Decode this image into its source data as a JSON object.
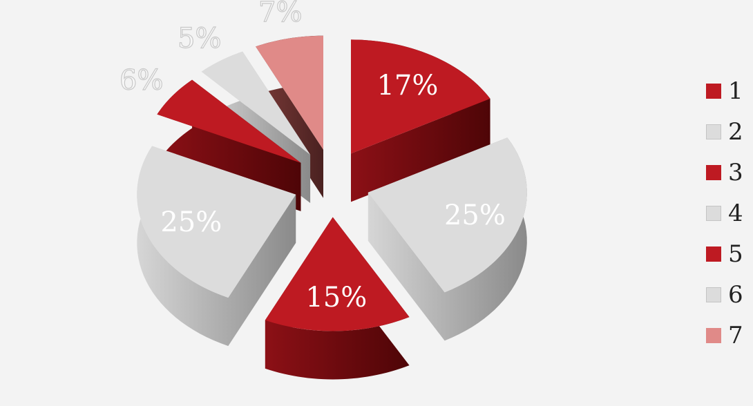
{
  "chart_data": {
    "type": "pie",
    "title": "",
    "legend_position": "right",
    "slices": [
      {
        "label": "1",
        "value": 17,
        "value_label": "17%",
        "color": "#be1a22"
      },
      {
        "label": "2",
        "value": 25,
        "value_label": "25%",
        "color": "#dcdcdc"
      },
      {
        "label": "3",
        "value": 15,
        "value_label": "15%",
        "color": "#be1a22"
      },
      {
        "label": "4",
        "value": 25,
        "value_label": "25%",
        "color": "#dcdcdc"
      },
      {
        "label": "5",
        "value": 6,
        "value_label": "6%",
        "color": "#be1a22"
      },
      {
        "label": "6",
        "value": 5,
        "value_label": "5%",
        "color": "#dcdcdc"
      },
      {
        "label": "7",
        "value": 7,
        "value_label": "7%",
        "color": "#e08a88"
      }
    ]
  }
}
